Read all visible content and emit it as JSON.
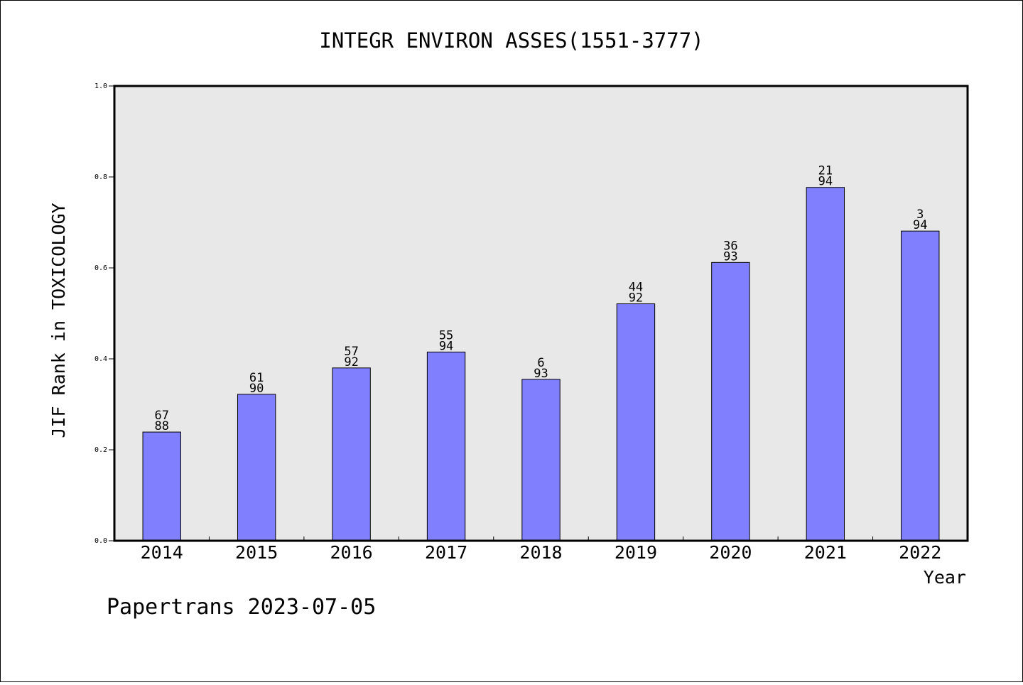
{
  "chart_data": {
    "type": "bar",
    "title": "INTEGR ENVIRON ASSES(1551-3777)",
    "xlabel": "Year",
    "ylabel": "JIF Rank in TOXICOLOGY",
    "ylim": [
      0,
      1.0
    ],
    "yticks": [
      "0.0",
      "0.2",
      "0.4",
      "0.6",
      "0.8",
      "1.0"
    ],
    "grid": false,
    "categories": [
      "2014",
      "2015",
      "2016",
      "2017",
      "2018",
      "2019",
      "2020",
      "2021",
      "2022"
    ],
    "values": [
      0.239,
      0.322,
      0.38,
      0.415,
      0.355,
      0.521,
      0.612,
      0.777,
      0.681
    ],
    "labels_top": [
      "67",
      "61",
      "57",
      "55",
      "6",
      "44",
      "36",
      "21",
      "3"
    ],
    "labels_bottom": [
      "88",
      "90",
      "92",
      "94",
      "93",
      "92",
      "93",
      "94",
      "94"
    ],
    "bar_color": "#8080ff",
    "plot_background": "#e8e8e8"
  },
  "footer": {
    "watermark": "Papertrans 2023-07-05"
  }
}
